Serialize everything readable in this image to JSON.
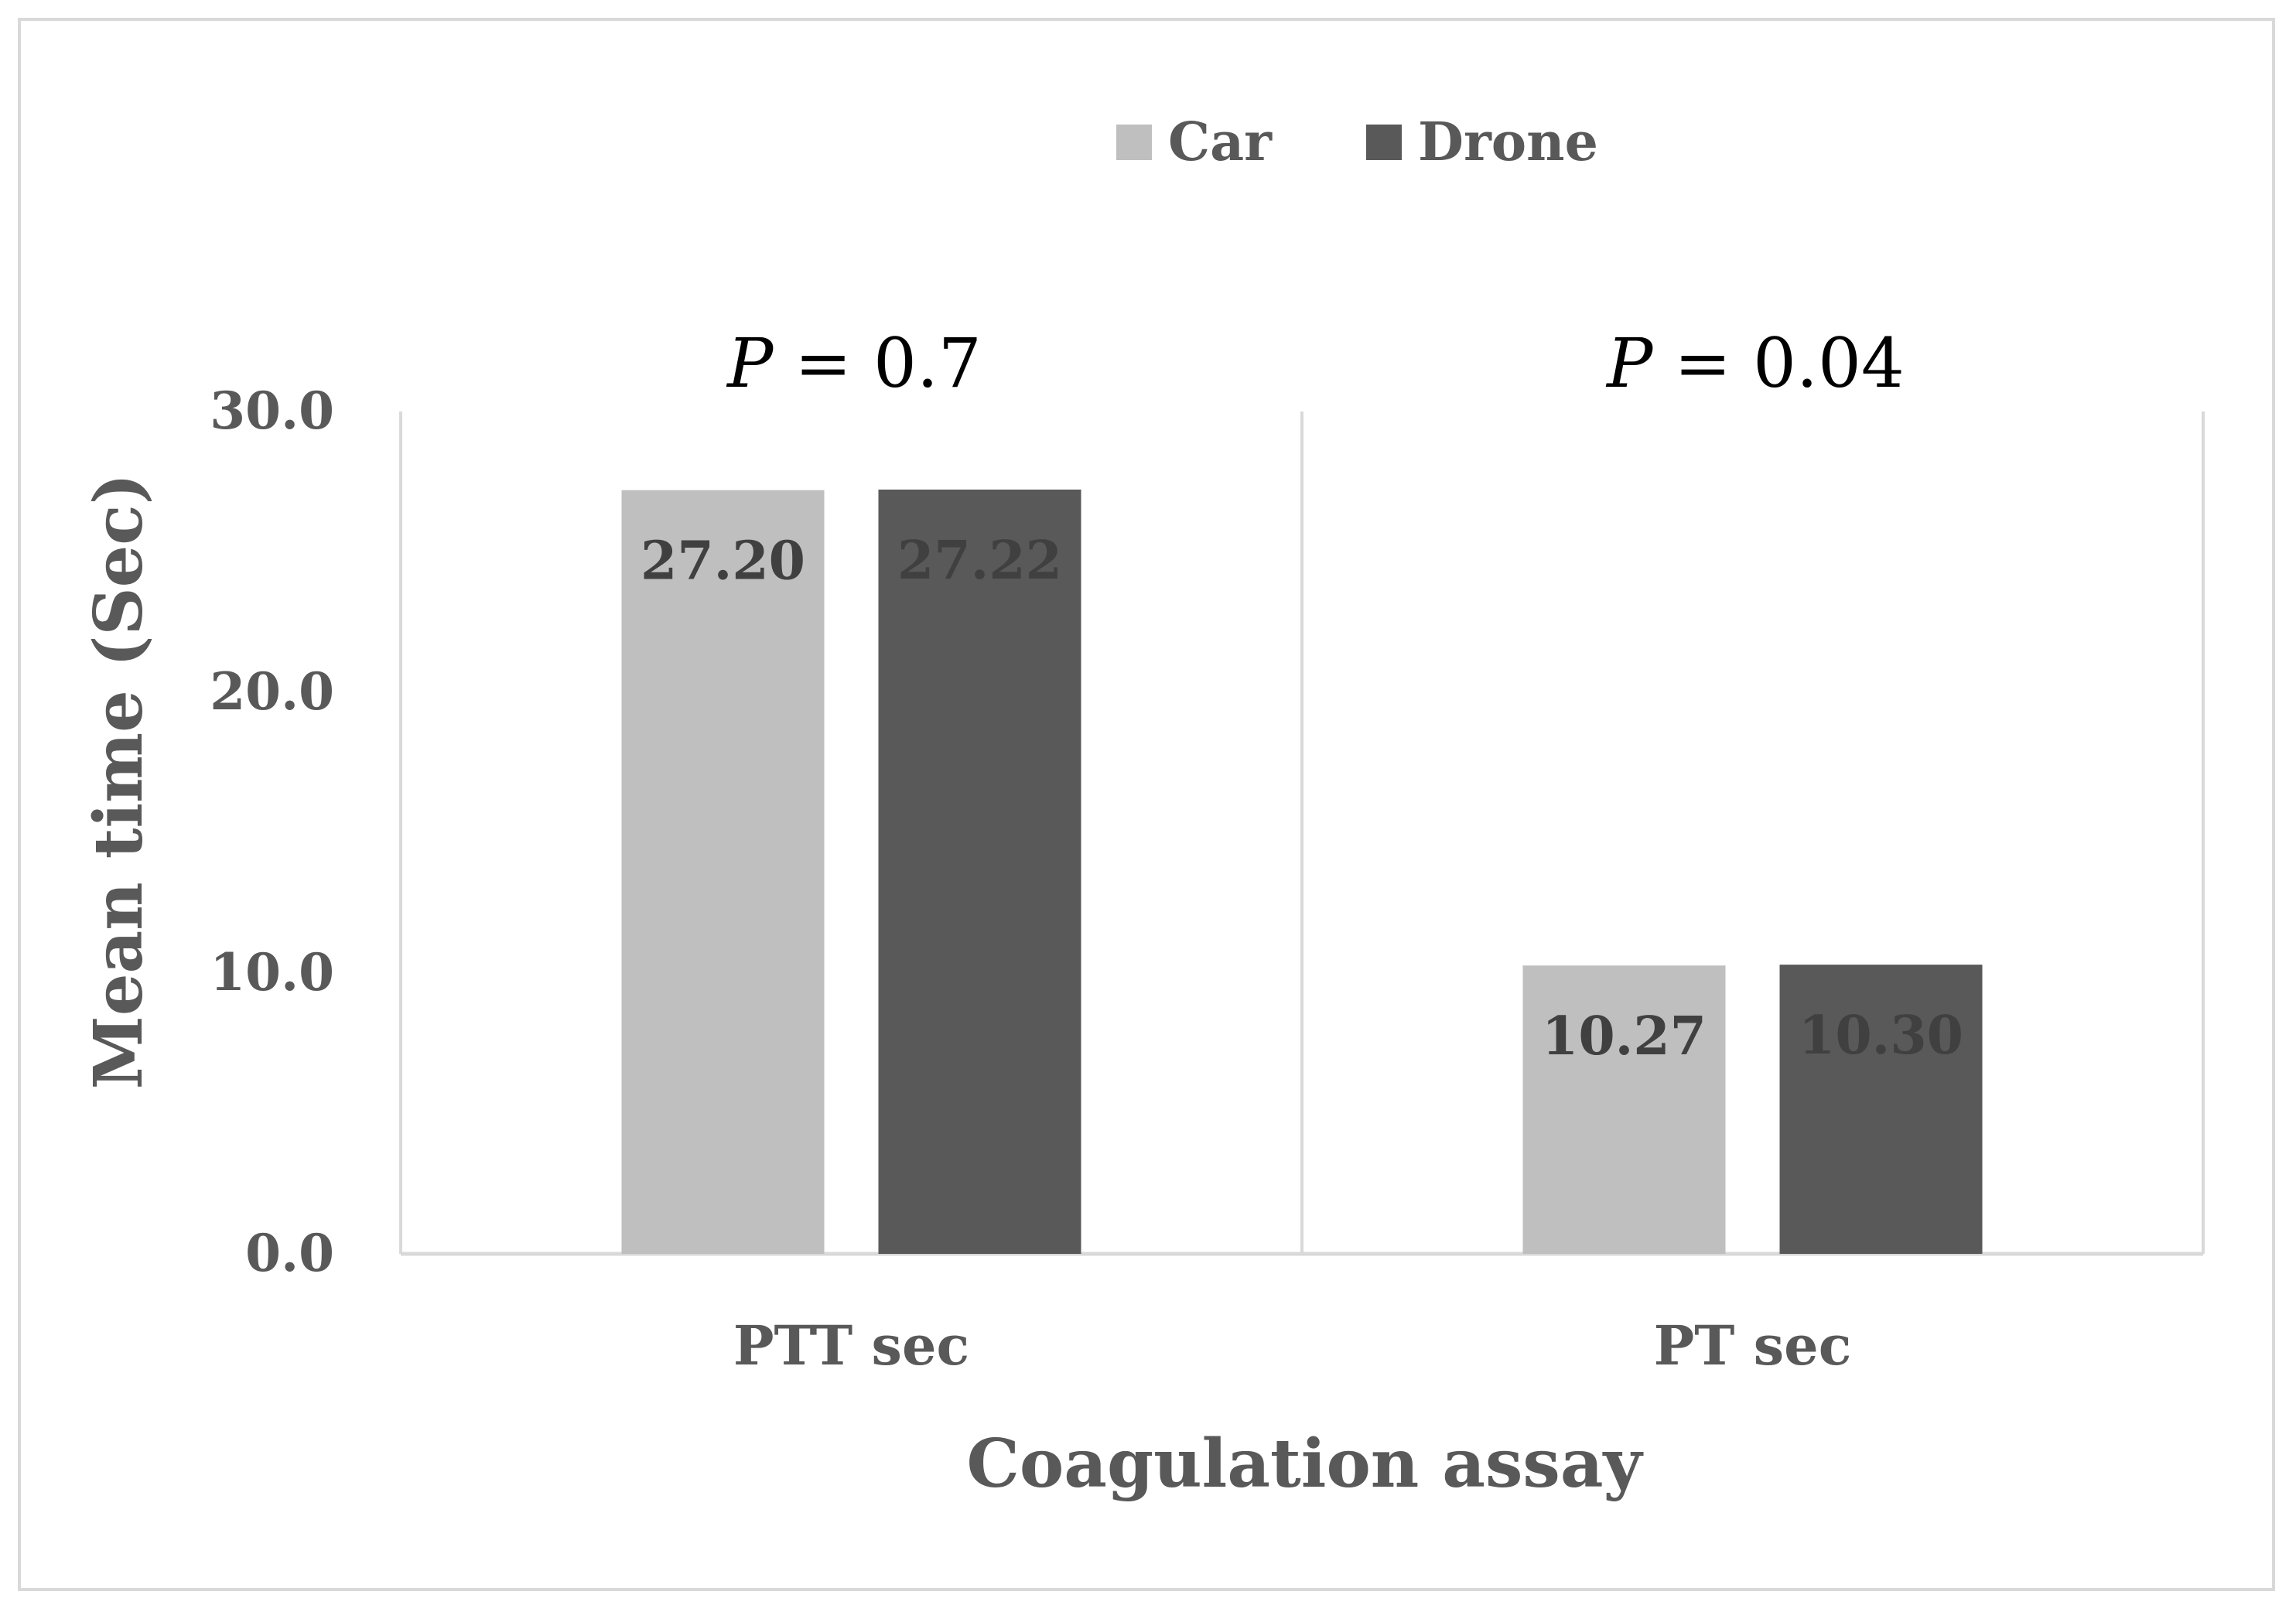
{
  "chart_data": {
    "type": "bar",
    "categories": [
      "PTT sec",
      "PT sec"
    ],
    "series": [
      {
        "name": "Car",
        "values": [
          27.2,
          10.27
        ],
        "labels": [
          "27.20",
          "10.27"
        ],
        "color": "#bfbfbf",
        "label_color": "#404040"
      },
      {
        "name": "Drone",
        "values": [
          27.22,
          10.3
        ],
        "labels": [
          "27.22",
          "10.30"
        ],
        "color": "#595959",
        "label_color": "#404040"
      }
    ],
    "xlabel": "Coagulation assay",
    "ylabel": "Mean time (Sec)",
    "ylim": [
      0,
      30
    ],
    "yticks": [
      0,
      10,
      20,
      30
    ],
    "ytick_labels": [
      "0.0",
      "10.0",
      "20.0",
      "30.0"
    ],
    "legend": {
      "position": "top-center",
      "entries": [
        "Car",
        "Drone"
      ]
    },
    "annotations": [
      {
        "category": "PTT sec",
        "symbol": "P",
        "text": " = 0.7"
      },
      {
        "category": "PT sec",
        "symbol": "P",
        "text": " = 0.04"
      }
    ],
    "grid": false,
    "colors": {
      "axis": "#d9d9d9",
      "text": "#595959"
    }
  }
}
